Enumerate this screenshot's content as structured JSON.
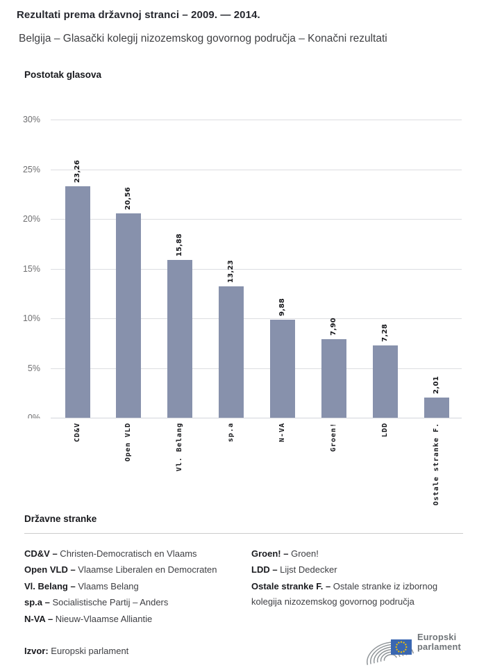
{
  "header": {
    "title": "Rezultati prema državnoj stranci – 2009. — 2014.",
    "subtitle": "Belgija – Glasački kolegij nizozemskog govornog područja – Konačni rezultati"
  },
  "chart_data": {
    "type": "bar",
    "axis_title": "Postotak glasova",
    "categories": [
      "CD&V",
      "Open VLD",
      "Vl. Belang",
      "sp.a",
      "N-VA",
      "Groen!",
      "LDD",
      "Ostale stranke F."
    ],
    "values": [
      23.26,
      20.56,
      15.88,
      13.23,
      9.88,
      7.9,
      7.28,
      2.01
    ],
    "value_labels": [
      "23,26",
      "20,56",
      "15,88",
      "13,23",
      "9,88",
      "7,90",
      "7,28",
      "2,01"
    ],
    "ylim": [
      0,
      30
    ],
    "ytick_step": 5,
    "ytick_suffix": "%",
    "ytick_labels": [
      "30%",
      "25%",
      "20%",
      "15%",
      "10%",
      "5%",
      "0%"
    ],
    "grid": true,
    "bar_color": "#8791ac"
  },
  "legend": {
    "heading": "Državne stranke",
    "left": [
      {
        "term": "CD&V –",
        "desc": "Christen-Democratisch en Vlaams"
      },
      {
        "term": "Open VLD –",
        "desc": "Vlaamse Liberalen en Democraten"
      },
      {
        "term": "Vl. Belang –",
        "desc": "Vlaams Belang"
      },
      {
        "term": "sp.a –",
        "desc": "Socialistische Partij – Anders"
      },
      {
        "term": "N-VA –",
        "desc": "Nieuw-Vlaamse Alliantie"
      }
    ],
    "right": [
      {
        "term": "Groen! –",
        "desc": "Groen!"
      },
      {
        "term": "LDD –",
        "desc": "Lijst Dedecker"
      },
      {
        "term": "Ostale stranke F. –",
        "desc": "Ostale stranke iz izbornog kolegija nizozemskog govornog područja"
      }
    ]
  },
  "footer": {
    "source_label": "Izvor:",
    "source_value": "Europski parlament",
    "logo_line1": "Europski",
    "logo_line2": "parlament"
  },
  "colors": {
    "bar": "#8791ac",
    "eu_flag_blue": "#3a67b1",
    "eu_star_yellow": "#f3c300",
    "logo_gray": "#8f9498"
  }
}
